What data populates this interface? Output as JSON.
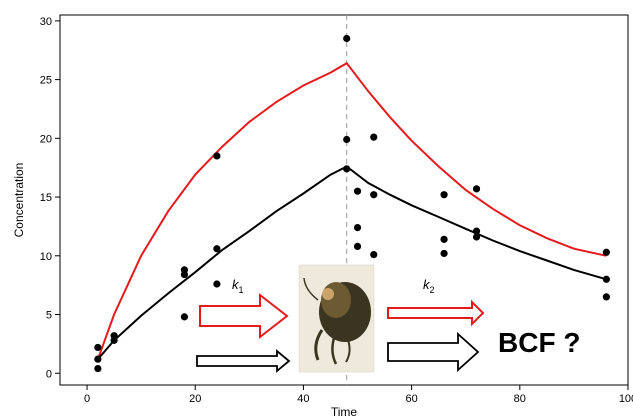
{
  "chart_data": {
    "type": "scatter",
    "xlabel": "Time",
    "ylabel": "Concentration",
    "xlim": [
      -5,
      100
    ],
    "ylim": [
      -1,
      30.5
    ],
    "x_ticks": [
      0,
      20,
      40,
      60,
      80,
      100
    ],
    "x_tick_labels": [
      "0",
      "20",
      "40",
      "60",
      "80",
      "100"
    ],
    "y_ticks": [
      0,
      5,
      10,
      15,
      20,
      25,
      30
    ],
    "y_tick_labels": [
      "0",
      "5",
      "10",
      "15",
      "20",
      "25",
      "30"
    ],
    "grid": false,
    "switch_time": 48,
    "points": [
      {
        "x": 2,
        "y": 2.2
      },
      {
        "x": 2,
        "y": 1.2
      },
      {
        "x": 2,
        "y": 0.4
      },
      {
        "x": 5,
        "y": 3.2
      },
      {
        "x": 5,
        "y": 2.8
      },
      {
        "x": 18,
        "y": 8.8
      },
      {
        "x": 18,
        "y": 8.4
      },
      {
        "x": 18,
        "y": 4.8
      },
      {
        "x": 24,
        "y": 18.5
      },
      {
        "x": 24,
        "y": 10.6
      },
      {
        "x": 24,
        "y": 7.6
      },
      {
        "x": 48,
        "y": 28.5
      },
      {
        "x": 48,
        "y": 19.9
      },
      {
        "x": 48,
        "y": 17.4
      },
      {
        "x": 50,
        "y": 15.5
      },
      {
        "x": 50,
        "y": 12.4
      },
      {
        "x": 50,
        "y": 10.8
      },
      {
        "x": 53,
        "y": 20.1
      },
      {
        "x": 53,
        "y": 15.2
      },
      {
        "x": 53,
        "y": 10.1
      },
      {
        "x": 66,
        "y": 15.2
      },
      {
        "x": 66,
        "y": 11.4
      },
      {
        "x": 66,
        "y": 10.2
      },
      {
        "x": 72,
        "y": 15.7
      },
      {
        "x": 72,
        "y": 12.1
      },
      {
        "x": 72,
        "y": 11.6
      },
      {
        "x": 96,
        "y": 10.3
      },
      {
        "x": 96,
        "y": 8.0
      },
      {
        "x": 96,
        "y": 6.5
      }
    ],
    "series": [
      {
        "color": "#e41a1c",
        "x": [
          2,
          5,
          10,
          15,
          20,
          25,
          30,
          35,
          40,
          45,
          48,
          52,
          56,
          60,
          65,
          70,
          75,
          80,
          85,
          90,
          96
        ],
        "y": [
          1.2,
          5.0,
          10.0,
          13.8,
          16.9,
          19.3,
          21.4,
          23.1,
          24.5,
          25.6,
          26.4,
          24.0,
          21.8,
          19.8,
          17.6,
          15.6,
          14.0,
          12.6,
          11.5,
          10.6,
          10.0
        ]
      },
      {
        "color": "#000000",
        "x": [
          2,
          5,
          10,
          15,
          20,
          25,
          30,
          35,
          40,
          45,
          48,
          52,
          56,
          60,
          65,
          70,
          75,
          80,
          85,
          90,
          96
        ],
        "y": [
          1.2,
          2.8,
          4.9,
          6.8,
          8.6,
          10.5,
          12.1,
          13.8,
          15.3,
          16.9,
          17.6,
          16.2,
          15.2,
          14.3,
          13.3,
          12.3,
          11.3,
          10.4,
          9.6,
          8.8,
          8.0
        ]
      }
    ],
    "annotations": {
      "k1": "k",
      "k1_sub": "1",
      "k2": "k",
      "k2_sub": "2",
      "bcf": "BCF ?"
    },
    "colors": {
      "uptake_arrow": "#e41a1c",
      "bcf_text": "#1f77c4"
    },
    "image_subject": "amphipod-crustacean"
  }
}
